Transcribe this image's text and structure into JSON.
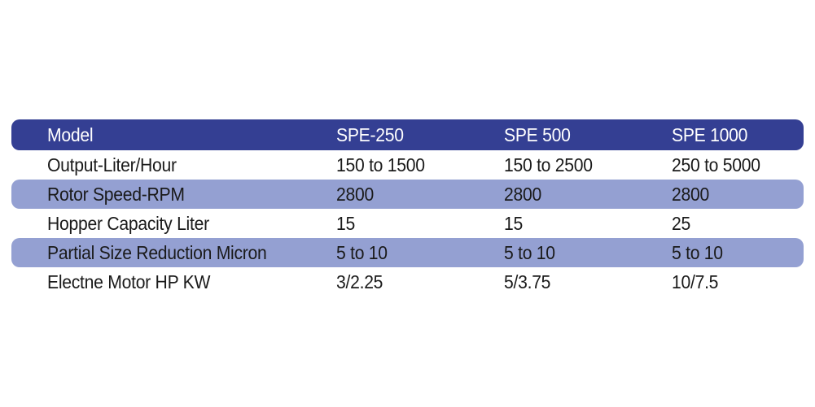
{
  "colors": {
    "header_bg": "#343f93",
    "shaded_row_bg": "#94a0d2",
    "header_text": "#ffffff",
    "body_text": "#1a1a1a"
  },
  "table": {
    "headers": [
      "Model",
      "SPE-250",
      "SPE 500",
      "SPE 1000"
    ],
    "rows": [
      [
        "Output-Liter/Hour",
        "150 to 1500",
        "150 to 2500",
        "250 to 5000"
      ],
      [
        "Rotor Speed-RPM",
        "2800",
        "2800",
        "2800"
      ],
      [
        "Hopper Capacity Liter",
        "15",
        "15",
        "25"
      ],
      [
        "Partial Size Reduction Micron",
        "5 to 10",
        "5 to 10",
        "5 to 10"
      ],
      [
        "Electne Motor HP KW",
        "3/2.25",
        "5/3.75",
        "10/7.5"
      ]
    ]
  }
}
